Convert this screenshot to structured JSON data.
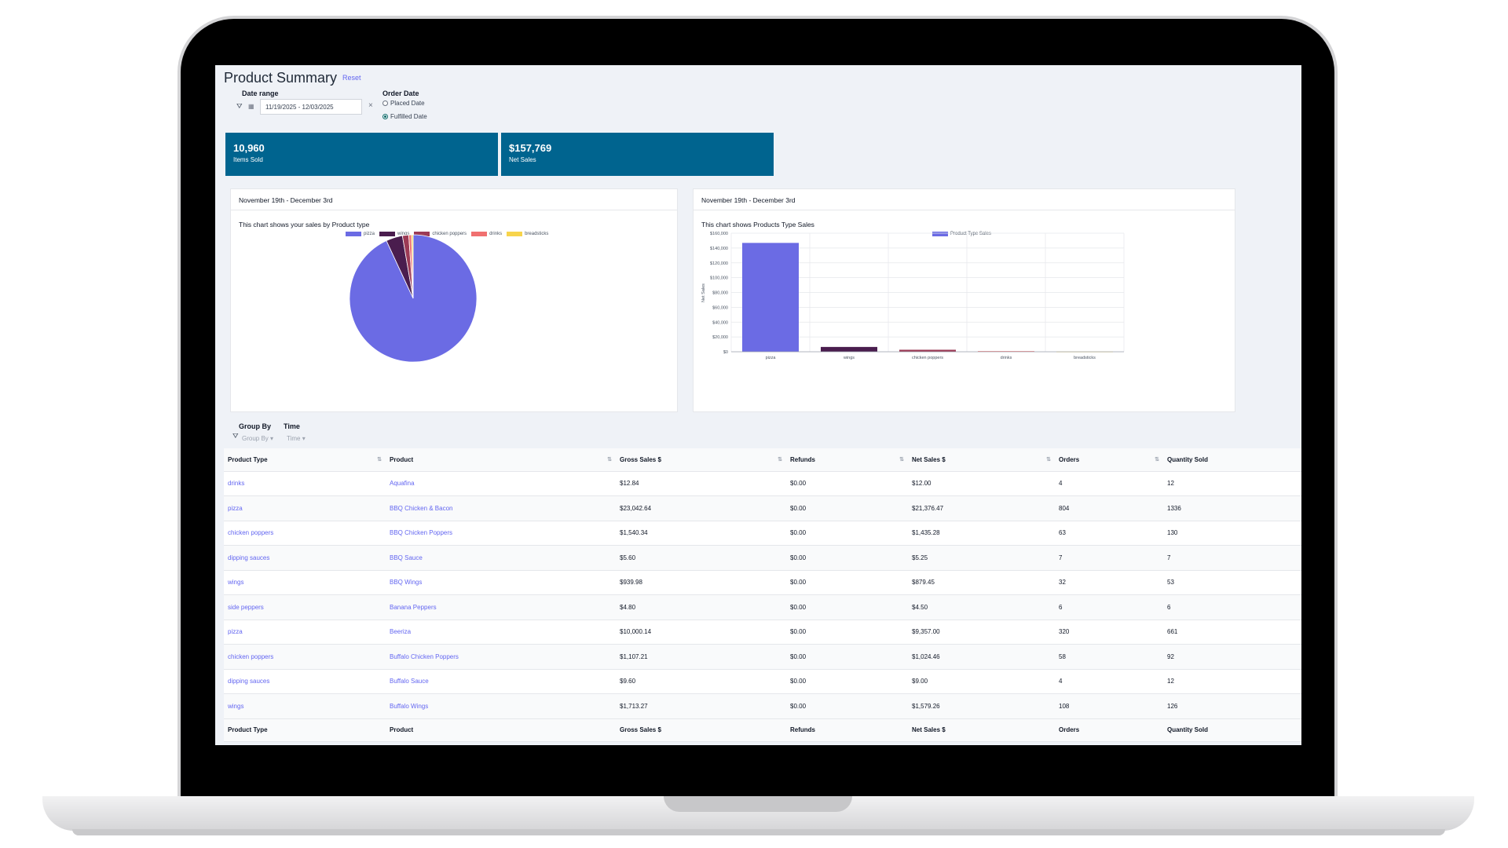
{
  "page": {
    "title": "Product Summary",
    "reset_label": "Reset"
  },
  "filters": {
    "date_range_label": "Date range",
    "date_range_value": "11/19/2025 - 12/03/2025",
    "clear_icon": "×",
    "order_date_label": "Order Date",
    "placed_date_label": "Placed Date",
    "fulfilled_date_label": "Fulfilled Date",
    "selected": "Fulfilled Date"
  },
  "kpis": [
    {
      "value": "10,960",
      "label": "Items Sold"
    },
    {
      "value": "$157,769",
      "label": "Net Sales"
    }
  ],
  "pie_panel": {
    "header": "November 19th - December 3rd",
    "subtitle": "This chart shows your sales by Product type"
  },
  "bar_panel": {
    "header": "November 19th - December 3rd",
    "subtitle": "This chart shows Products Type Sales"
  },
  "colors": {
    "pizza": "#6b6be4",
    "wings": "#4a1d4e",
    "chicken poppers": "#9c3a55",
    "drinks": "#f07070",
    "breadsticks": "#f7d44c",
    "kpi": "#00648f",
    "link": "#6366f1"
  },
  "chart_data": [
    {
      "type": "pie",
      "title": "This chart shows your sales by Product type",
      "legend": [
        "pizza",
        "wings",
        "chicken poppers",
        "drinks",
        "breadsticks"
      ],
      "legend_position": "top",
      "values": [
        0.931,
        0.042,
        0.016,
        0.007,
        0.004
      ]
    },
    {
      "type": "bar",
      "title": "This chart shows Products Type Sales",
      "categories": [
        "pizza",
        "wings",
        "chicken poppers",
        "drinks",
        "breadsticks"
      ],
      "series": [
        {
          "name": "Product Type Sales",
          "values": [
            146900,
            6500,
            2700,
            900,
            300
          ]
        }
      ],
      "ylabel": "Net Sales",
      "ylim": [
        0,
        160000
      ],
      "yticks": [
        "$0",
        "$20,000",
        "$40,000",
        "$60,000",
        "$80,000",
        "$100,000",
        "$120,000",
        "$140,000",
        "$160,000"
      ],
      "grid": true,
      "legend_position": "top"
    }
  ],
  "group_by": {
    "group_by_label": "Group By",
    "group_by_placeholder": "Group By",
    "time_label": "Time",
    "time_placeholder": "Time"
  },
  "table": {
    "columns": [
      "Product Type",
      "Product",
      "Gross Sales $",
      "Refunds",
      "Net Sales $",
      "Orders",
      "Quantity Sold"
    ],
    "rows": [
      [
        "drinks",
        "Aquafina",
        "$12.84",
        "$0.00",
        "$12.00",
        "4",
        "12"
      ],
      [
        "pizza",
        "BBQ Chicken & Bacon",
        "$23,042.64",
        "$0.00",
        "$21,376.47",
        "804",
        "1336"
      ],
      [
        "chicken poppers",
        "BBQ Chicken Poppers",
        "$1,540.34",
        "$0.00",
        "$1,435.28",
        "63",
        "130"
      ],
      [
        "dipping sauces",
        "BBQ Sauce",
        "$5.60",
        "$0.00",
        "$5.25",
        "7",
        "7"
      ],
      [
        "wings",
        "BBQ Wings",
        "$939.98",
        "$0.00",
        "$879.45",
        "32",
        "53"
      ],
      [
        "side peppers",
        "Banana Peppers",
        "$4.80",
        "$0.00",
        "$4.50",
        "6",
        "6"
      ],
      [
        "pizza",
        "Beeriza",
        "$10,000.14",
        "$0.00",
        "$9,357.00",
        "320",
        "661"
      ],
      [
        "chicken poppers",
        "Buffalo Chicken Poppers",
        "$1,107.21",
        "$0.00",
        "$1,024.46",
        "58",
        "92"
      ],
      [
        "dipping sauces",
        "Buffalo Sauce",
        "$9.60",
        "$0.00",
        "$9.00",
        "4",
        "12"
      ],
      [
        "wings",
        "Buffalo Wings",
        "$1,713.27",
        "$0.00",
        "$1,579.26",
        "108",
        "126"
      ]
    ]
  }
}
